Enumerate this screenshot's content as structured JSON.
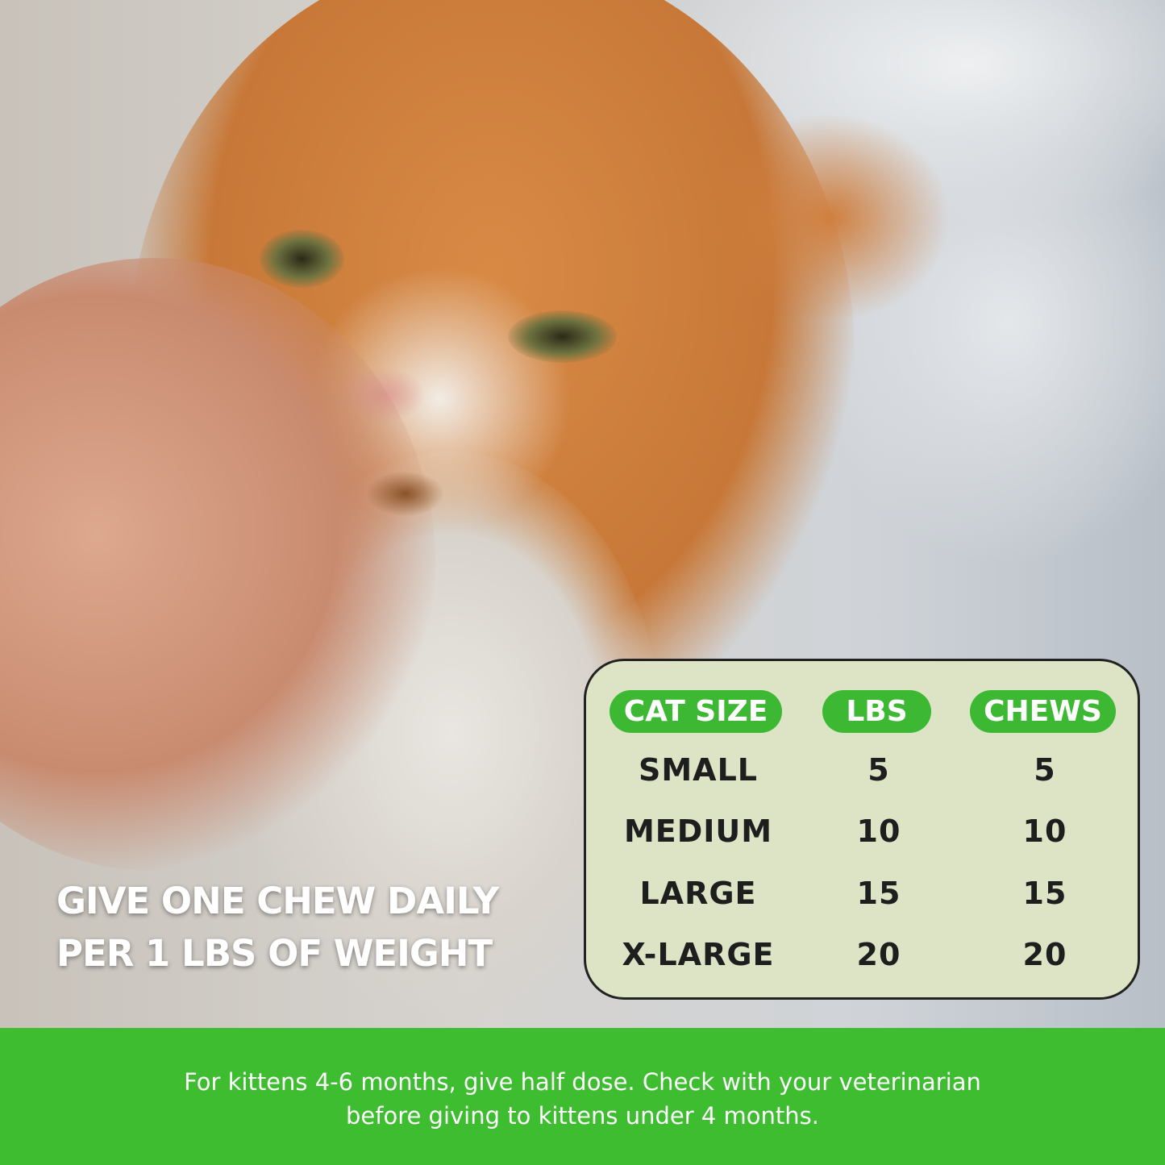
{
  "headline": {
    "line1": "GIVE ONE CHEW DAILY",
    "line2": "PER 1 LBS OF WEIGHT"
  },
  "dosage_table": {
    "headers": [
      "CAT SIZE",
      "LBS",
      "CHEWS"
    ],
    "rows": [
      [
        "SMALL",
        "5",
        "5"
      ],
      [
        "MEDIUM",
        "10",
        "10"
      ],
      [
        "LARGE",
        "15",
        "15"
      ],
      [
        "X-LARGE",
        "20",
        "20"
      ]
    ]
  },
  "footer": {
    "line1": "For kittens 4-6 months, give half dose. Check with your veterinarian",
    "line2": "before giving to kittens under 4 months."
  },
  "colors": {
    "brand_green": "#3dbd2f",
    "table_bg": "#dde4c6"
  }
}
